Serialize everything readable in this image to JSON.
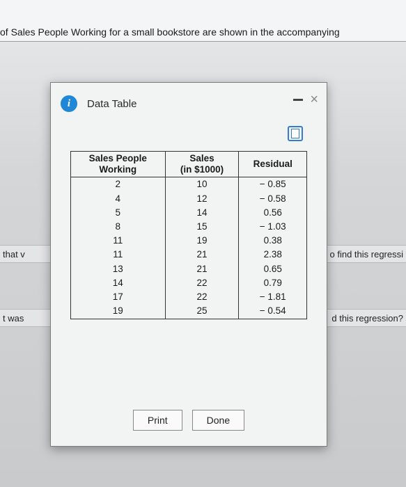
{
  "header": {
    "text": "of Sales People Working for a small bookstore are shown in the accompanying"
  },
  "bands": {
    "band1_left": "that v",
    "band1_right": "o find this regressi",
    "band2_left": "t was",
    "band2_right": "d this regression?"
  },
  "modal": {
    "title": "Data Table",
    "buttons": {
      "print": "Print",
      "done": "Done"
    }
  },
  "table": {
    "columns": [
      {
        "line1": "Sales People",
        "line2": "Working"
      },
      {
        "line1": "Sales",
        "line2": "(in $1000)"
      },
      {
        "line1": "Residual",
        "line2": ""
      }
    ],
    "rows": [
      [
        "2",
        "10",
        "− 0.85"
      ],
      [
        "4",
        "12",
        "− 0.58"
      ],
      [
        "5",
        "14",
        "0.56"
      ],
      [
        "8",
        "15",
        "− 1.03"
      ],
      [
        "11",
        "19",
        "0.38"
      ],
      [
        "11",
        "21",
        "2.38"
      ],
      [
        "13",
        "21",
        "0.65"
      ],
      [
        "14",
        "22",
        "0.79"
      ],
      [
        "17",
        "22",
        "− 1.81"
      ],
      [
        "19",
        "25",
        "− 0.54"
      ]
    ]
  }
}
